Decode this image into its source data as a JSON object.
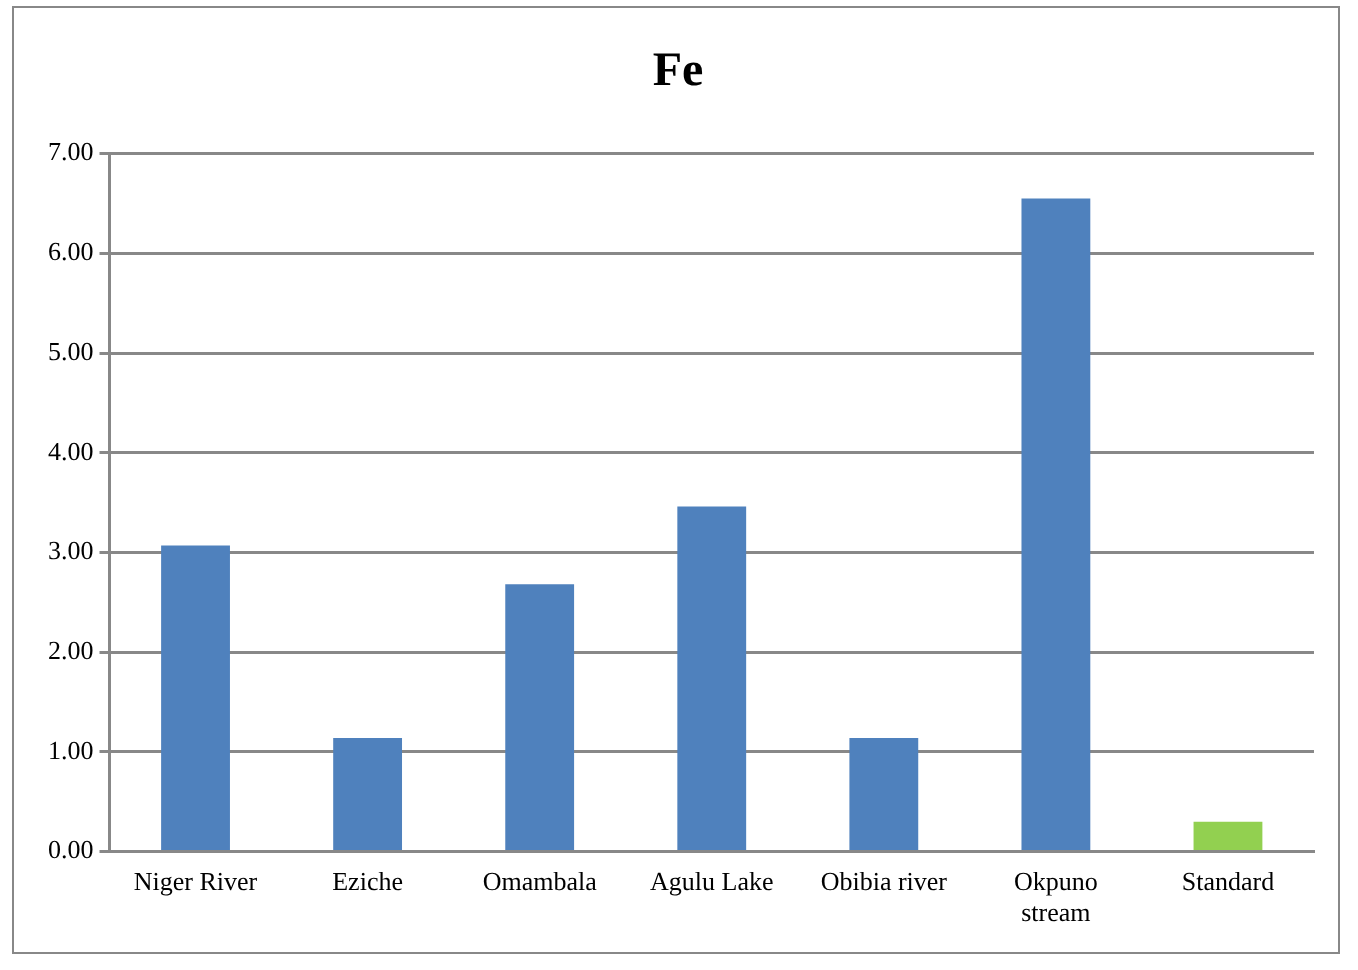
{
  "chart_data": {
    "type": "bar",
    "title": "Fe",
    "categories": [
      "Niger River",
      "Eziche",
      "Omambala",
      "Agulu Lake",
      "Obibia river",
      "Okpuno stream",
      "Standard"
    ],
    "values": [
      3.07,
      1.14,
      2.68,
      3.46,
      1.14,
      6.55,
      0.3
    ],
    "colors": [
      "#4f81bd",
      "#4f81bd",
      "#4f81bd",
      "#4f81bd",
      "#4f81bd",
      "#4f81bd",
      "#92d050"
    ],
    "ylim": [
      0,
      7
    ],
    "yticks": [
      {
        "value": 0,
        "label": "0.00"
      },
      {
        "value": 1,
        "label": "1.00"
      },
      {
        "value": 2,
        "label": "2.00"
      },
      {
        "value": 3,
        "label": "3.00"
      },
      {
        "value": 4,
        "label": "4.00"
      },
      {
        "value": 5,
        "label": "5.00"
      },
      {
        "value": 6,
        "label": "6.00"
      },
      {
        "value": 7,
        "label": "7.00"
      }
    ],
    "grid": "y",
    "legend": false
  }
}
